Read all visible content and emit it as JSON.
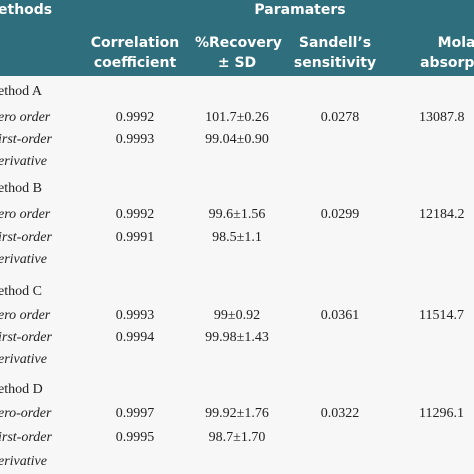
{
  "header": {
    "methods": "ethods",
    "group": "Paramaters",
    "columns": [
      "Correlation coefficient",
      "%Recovery ± SD",
      "Sandell’s sensitivity",
      "Molar absorptivi"
    ]
  },
  "groups": [
    {
      "name": "ethod A",
      "rows": [
        {
          "label": "ero order",
          "cells": [
            "0.9992",
            "101.7±0.26",
            "0.0278",
            "13087.8"
          ]
        },
        {
          "label": "irst-order",
          "cells": [
            "0.9993",
            "99.04±0.90"
          ]
        },
        {
          "label": "erivative",
          "cells": []
        }
      ]
    },
    {
      "name": "ethod B",
      "rows": [
        {
          "label": "ero order",
          "cells": [
            "0.9992",
            "99.6±1.56",
            "0.0299",
            "12184.2"
          ]
        },
        {
          "label": "irst-order",
          "cells": [
            "0.9991",
            "98.5±1.1"
          ]
        },
        {
          "label": "erivative",
          "cells": []
        }
      ]
    },
    {
      "name": "ethod C",
      "rows": [
        {
          "label": "ero order",
          "cells": [
            "0.9993",
            "99±0.92",
            "0.0361",
            "11514.7"
          ]
        },
        {
          "label": "irst-order",
          "cells": [
            "0.9994",
            "99.98±1.43"
          ]
        },
        {
          "label": "erivative",
          "cells": []
        }
      ]
    },
    {
      "name": "ethod D",
      "rows": [
        {
          "label": "ero-order",
          "cells": [
            "0.9997",
            "99.92±1.76",
            "0.0322",
            "11296.1"
          ]
        },
        {
          "label": "irst-order",
          "cells": [
            "0.9995",
            "98.7±1.70"
          ]
        },
        {
          "label": "erivative",
          "cells": []
        }
      ]
    }
  ]
}
